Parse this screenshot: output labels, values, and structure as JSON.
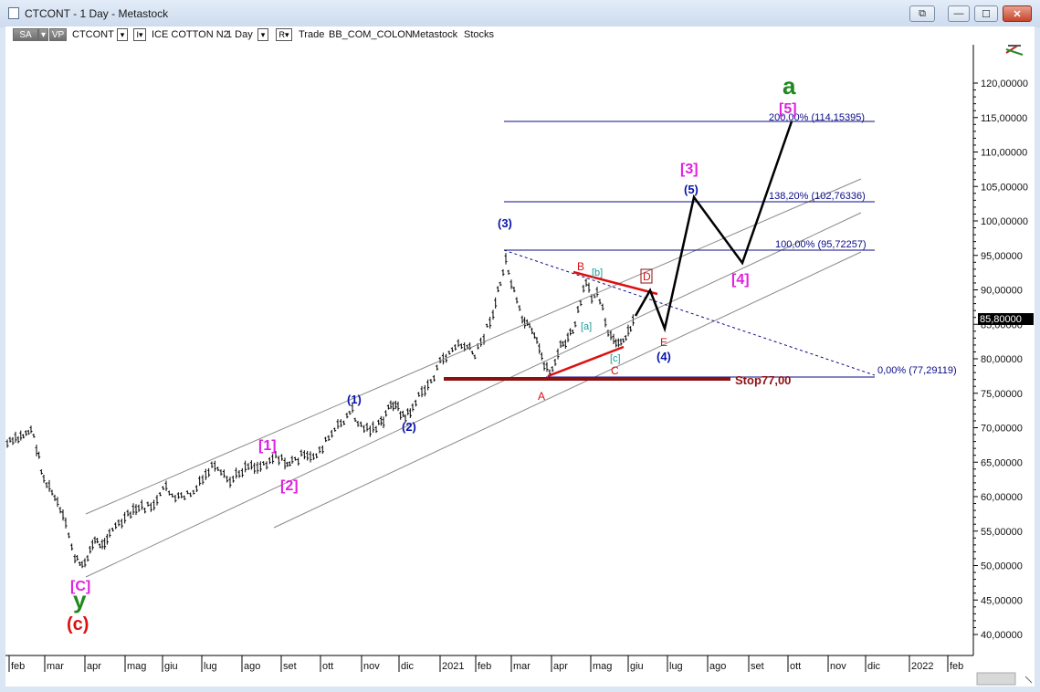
{
  "window": {
    "title": "CTCONT - 1 Day - Metastock",
    "buttons": {
      "restore": "⧉",
      "minimize": "—",
      "maximize": "☐",
      "close": "✕"
    }
  },
  "toolbar": {
    "sa": "SA",
    "vp": "VP",
    "symbol": "CTCONT",
    "instrument": "ICE COTTON N2",
    "period": "1 Day",
    "r_label": "R",
    "trade": "Trade",
    "feed": "BB_COM_COLON",
    "source": "Metastock",
    "category": "Stocks",
    "dropdown_glyph": "▾",
    "instrument_glyph": "I▾"
  },
  "chart": {
    "price_axis": [
      "120,00000",
      "115,00000",
      "110,00000",
      "105,00000",
      "100,00000",
      "95,00000",
      "90,00000",
      "85,00000",
      "80,00000",
      "75,00000",
      "70,00000",
      "65,00000",
      "60,00000",
      "55,00000",
      "50,00000",
      "45,00000",
      "40,00000"
    ],
    "current_price": "85,80000",
    "time_axis": [
      "feb",
      "mar",
      "apr",
      "mag",
      "giu",
      "lug",
      "ago",
      "set",
      "ott",
      "nov",
      "dic",
      "2021",
      "feb",
      "mar",
      "apr",
      "mag",
      "giu",
      "lug",
      "ago",
      "set",
      "ott",
      "nov",
      "dic",
      "2022",
      "feb"
    ],
    "fib_levels": [
      "200,00% (114,15395)",
      "138,20% (102,76336)",
      "100,00% (95,72257)",
      "0,00% (77,29119)"
    ],
    "stop_label": "Stop77,00",
    "wave_labels": {
      "a": "a",
      "w5_top": "[5]",
      "w3": "[3]",
      "w5": "(5)",
      "w4": "[4]",
      "w3p": "(3)",
      "B": "B",
      "b": "[b]",
      "D": "D",
      "a_small": "[a]",
      "c_small": "[c]",
      "C": "C",
      "E": "E",
      "w4p": "(4)",
      "A": "A",
      "w1p": "(1)",
      "w2p": "(2)",
      "w1": "[1]",
      "w2": "[2]",
      "C_big": "[C]",
      "y": "y",
      "c_paren": "(c)"
    },
    "colors": {
      "candles": "#000000",
      "channel": "#808080",
      "fib": "#0b0b8a",
      "stop": "#8b1010",
      "magenta": "#e020e0",
      "green": "#1e8a1e",
      "red": "#dd1010",
      "blue": "#0a14a8",
      "teal": "#1a9c98"
    }
  }
}
